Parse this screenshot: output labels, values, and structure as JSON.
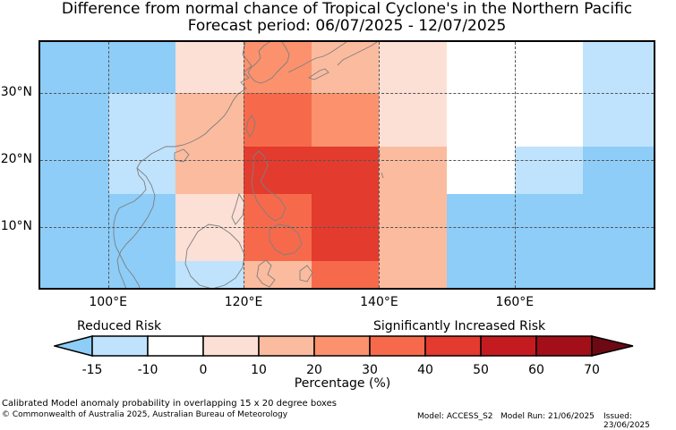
{
  "title": {
    "line1": "Difference from normal chance of Tropical Cyclone's in the Northern Pacific",
    "line2": "Forecast period: 06/07/2025 - 12/07/2025"
  },
  "map": {
    "lon_labels": [
      "100°E",
      "120°E",
      "140°E",
      "160°E"
    ],
    "lat_labels": [
      "30°N",
      "20°N",
      "10°N"
    ],
    "grid": "dashed"
  },
  "chart_data": {
    "type": "heatmap",
    "description_units": "difference in percentage points",
    "cells": [
      {
        "lon": [
          90,
          110
        ],
        "lat": [
          30,
          40
        ],
        "class": "-15 to -10"
      },
      {
        "lon": [
          90,
          100
        ],
        "lat": [
          15,
          30
        ],
        "class": "-15 to -10"
      },
      {
        "lon": [
          100,
          110
        ],
        "lat": [
          15,
          30
        ],
        "class": "-10 to 0"
      },
      {
        "lon": [
          90,
          110
        ],
        "lat": [
          0,
          15
        ],
        "class": "-15 to -10"
      },
      {
        "lon": [
          110,
          120
        ],
        "lat": [
          30,
          40
        ],
        "class": "0 to 10"
      },
      {
        "lon": [
          110,
          120
        ],
        "lat": [
          15,
          30
        ],
        "class": "10 to 20"
      },
      {
        "lon": [
          110,
          120
        ],
        "lat": [
          5,
          15
        ],
        "class": "0 to 10"
      },
      {
        "lon": [
          110,
          120
        ],
        "lat": [
          0,
          5
        ],
        "class": "-10 to 0"
      },
      {
        "lon": [
          120,
          130
        ],
        "lat": [
          30,
          40
        ],
        "class": "20 to 30"
      },
      {
        "lon": [
          120,
          130
        ],
        "lat": [
          22,
          30
        ],
        "class": "30 to 40"
      },
      {
        "lon": [
          120,
          130
        ],
        "lat": [
          15,
          22
        ],
        "class": "40 to 50"
      },
      {
        "lon": [
          120,
          130
        ],
        "lat": [
          5,
          15
        ],
        "class": "30 to 40"
      },
      {
        "lon": [
          120,
          130
        ],
        "lat": [
          0,
          5
        ],
        "class": "10 to 20"
      },
      {
        "lon": [
          130,
          140
        ],
        "lat": [
          30,
          40
        ],
        "class": "10 to 20"
      },
      {
        "lon": [
          130,
          140
        ],
        "lat": [
          22,
          30
        ],
        "class": "20 to 30"
      },
      {
        "lon": [
          130,
          140
        ],
        "lat": [
          5,
          22
        ],
        "class": "40 to 50"
      },
      {
        "lon": [
          130,
          140
        ],
        "lat": [
          0,
          5
        ],
        "class": "30 to 40"
      },
      {
        "lon": [
          140,
          150
        ],
        "lat": [
          22,
          40
        ],
        "class": "0 to 10"
      },
      {
        "lon": [
          140,
          150
        ],
        "lat": [
          0,
          22
        ],
        "class": "10 to 20"
      },
      {
        "lon": [
          150,
          160
        ],
        "lat": [
          15,
          40
        ],
        "class": "-10 to 0"
      },
      {
        "lon": [
          150,
          160
        ],
        "lat": [
          0,
          15
        ],
        "class": "-15 to -10"
      },
      {
        "lon": [
          160,
          170
        ],
        "lat": [
          22,
          40
        ],
        "class": "-10 to 0"
      },
      {
        "lon": [
          160,
          170
        ],
        "lat": [
          15,
          22
        ],
        "class": "-10 to -15"
      },
      {
        "lon": [
          160,
          170
        ],
        "lat": [
          0,
          15
        ],
        "class": "-15 to -10"
      },
      {
        "lon": [
          170,
          180
        ],
        "lat": [
          30,
          40
        ],
        "class": "-10 to -15"
      },
      {
        "lon": [
          170,
          180
        ],
        "lat": [
          22,
          30
        ],
        "class": "-10 to -15"
      },
      {
        "lon": [
          170,
          180
        ],
        "lat": [
          0,
          22
        ],
        "class": "-15 to -10"
      }
    ],
    "legend": {
      "left_label": "Reduced Risk",
      "right_label": "Significantly Increased Risk",
      "ticks": [
        "-15",
        "-10",
        "0",
        "10",
        "20",
        "30",
        "40",
        "50",
        "60",
        "70"
      ],
      "colors": [
        "#bfe3fd",
        "#ffffff",
        "#fde0d5",
        "#fbbb9f",
        "#fb926d",
        "#f66a4b",
        "#e33b2e",
        "#c41b21",
        "#a20f19"
      ],
      "extend_low_color": "#8dcdf8",
      "extend_high_color": "#6d0912",
      "xlabel": "Percentage (%)"
    }
  },
  "colors": {
    "c_m15": "#8dcdf8",
    "c_m10": "#bfe3fd",
    "c_0": "#ffffff",
    "c_10": "#fde0d5",
    "c_20": "#fbbb9f",
    "c_30": "#fb926d",
    "c_40": "#f66a4b",
    "c_50": "#e33b2e",
    "coast": "#7f7f7f"
  },
  "footer": {
    "line1": "Calibrated Model anomaly probability in overlapping 15 x 20 degree boxes",
    "line2": "© Commonwealth of Australia 2025, Australian Bureau of Meteorology",
    "model": "Model: ACCESS_S2",
    "run": "Model Run: 21/06/2025",
    "issued": "Issued: 23/06/2025"
  }
}
